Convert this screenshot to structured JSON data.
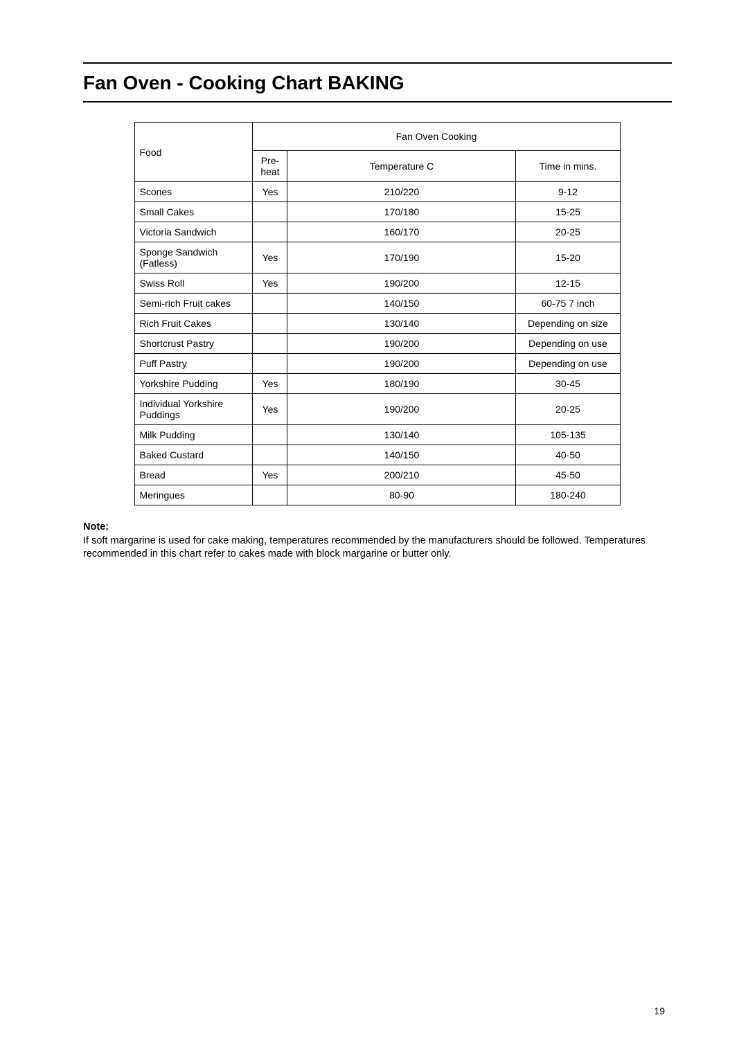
{
  "heading": "Fan Oven - Cooking Chart BAKING",
  "table": {
    "food_header": "Food",
    "group_header": "Fan Oven Cooking",
    "col_preheat": "Pre-\nheat",
    "col_temp": "Temperature  C",
    "col_time": "Time in mins.",
    "rows": [
      {
        "food": "Scones",
        "pre": "Yes",
        "temp": "210/220",
        "time": "9-12"
      },
      {
        "food": "Small Cakes",
        "pre": "",
        "temp": "170/180",
        "time": "15-25"
      },
      {
        "food": "Victoria Sandwich",
        "pre": "",
        "temp": "160/170",
        "time": "20-25"
      },
      {
        "food": "Sponge Sandwich (Fatless)",
        "pre": "Yes",
        "temp": "170/190",
        "time": "15-20"
      },
      {
        "food": "Swiss Roll",
        "pre": "Yes",
        "temp": "190/200",
        "time": "12-15"
      },
      {
        "food": "Semi-rich Fruit cakes",
        "pre": "",
        "temp": "140/150",
        "time": "60-75   7 inch"
      },
      {
        "food": "Rich Fruit Cakes",
        "pre": "",
        "temp": "130/140",
        "time": "Depending on size"
      },
      {
        "food": "Shortcrust Pastry",
        "pre": "",
        "temp": "190/200",
        "time": "Depending on use"
      },
      {
        "food": "Puff Pastry",
        "pre": "",
        "temp": "190/200",
        "time": "Depending on use"
      },
      {
        "food": "Yorkshire Pudding",
        "pre": "Yes",
        "temp": "180/190",
        "time": "30-45"
      },
      {
        "food": "Individual Yorkshire Puddings",
        "pre": "Yes",
        "temp": "190/200",
        "time": "20-25"
      },
      {
        "food": "Milk Pudding",
        "pre": "",
        "temp": "130/140",
        "time": "105-135"
      },
      {
        "food": "Baked Custard",
        "pre": "",
        "temp": "140/150",
        "time": "40-50"
      },
      {
        "food": "Bread",
        "pre": "Yes",
        "temp": "200/210",
        "time": "45-50"
      },
      {
        "food": "Meringues",
        "pre": "",
        "temp": "80-90",
        "time": "180-240"
      }
    ]
  },
  "note": {
    "label": "Note:",
    "body": "If soft margarine is used for cake making, temperatures recommended by the manufacturers should be followed. Temperatures recommended in this chart refer to cakes made with block margarine or butter only."
  },
  "page_number": "19"
}
